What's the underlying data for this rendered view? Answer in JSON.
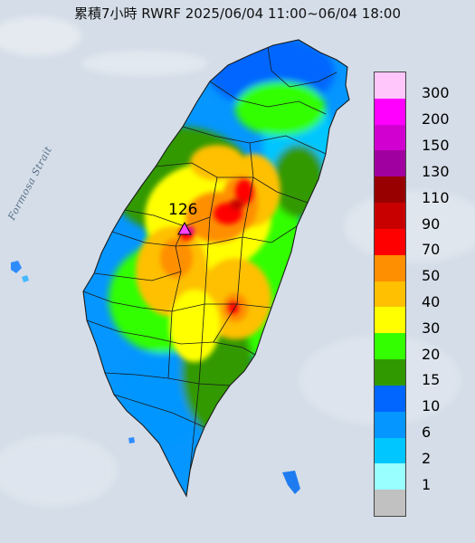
{
  "title": "累積7小時 RWRF 2025/06/04 11:00~06/04 18:00",
  "sea_label": "Formosa Strait",
  "peak": {
    "value": "126",
    "marker_color": "#ff44ff"
  },
  "legend": {
    "labels": [
      "300",
      "200",
      "150",
      "130",
      "110",
      "90",
      "70",
      "50",
      "40",
      "30",
      "20",
      "15",
      "10",
      "6",
      "2",
      "1"
    ],
    "colors": [
      "#ffc6fb",
      "#ff00ff",
      "#d100d0",
      "#a000a0",
      "#980000",
      "#c90000",
      "#ff0000",
      "#fe8f00",
      "#fec000",
      "#ffff00",
      "#33ff00",
      "#309900",
      "#0066ff",
      "#0596ff",
      "#00c6ff",
      "#99ffff",
      "#c1c1c1"
    ]
  },
  "colors": {
    "background": "#dfe6ee",
    "sea": "#d4dde8"
  }
}
